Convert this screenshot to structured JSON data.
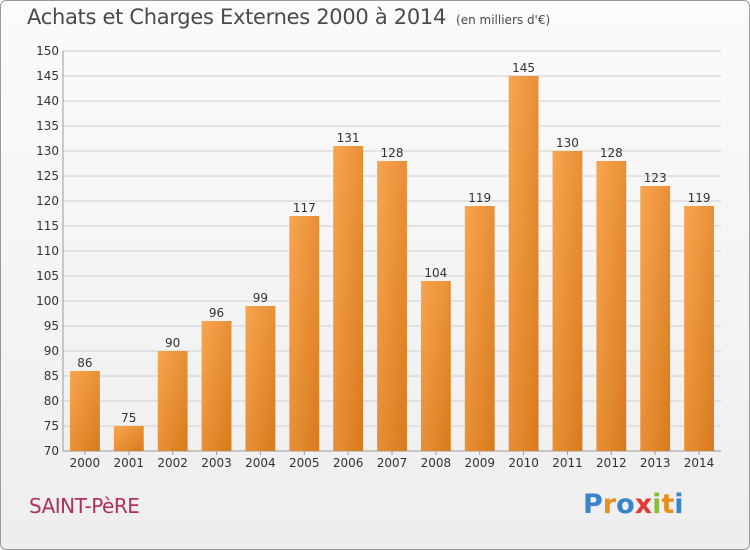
{
  "title": "Achats et Charges Externes 2000 à 2014",
  "unit": "(en milliers d'€)",
  "commune": "SAINT-PèRE",
  "logo": {
    "text": "Proxiti",
    "letters": [
      {
        "ch": "P",
        "color": "#3a84c9"
      },
      {
        "ch": "r",
        "color": "#e8901e"
      },
      {
        "ch": "o",
        "color": "#3a84c9"
      },
      {
        "ch": "x",
        "color": "#e23a3a"
      },
      {
        "ch": "i",
        "color": "#8bbd3a"
      },
      {
        "ch": "t",
        "color": "#e8901e"
      },
      {
        "ch": "i",
        "color": "#3a84c9"
      }
    ]
  },
  "colors": {
    "bar_light": "#f8a550",
    "bar_dark": "#d87a1c",
    "grid": "#cfcfcf",
    "axis_text": "#333333"
  },
  "chart_data": {
    "type": "bar",
    "categories": [
      "2000",
      "2001",
      "2002",
      "2003",
      "2004",
      "2005",
      "2006",
      "2007",
      "2008",
      "2009",
      "2010",
      "2011",
      "2012",
      "2013",
      "2014"
    ],
    "values": [
      86,
      75,
      90,
      96,
      99,
      117,
      131,
      128,
      104,
      119,
      145,
      130,
      128,
      123,
      119
    ],
    "ylim": [
      70,
      150
    ],
    "yticks": [
      70,
      75,
      80,
      85,
      90,
      95,
      100,
      105,
      110,
      115,
      120,
      125,
      130,
      135,
      140,
      145,
      150
    ],
    "grid": true,
    "xlabel": "",
    "ylabel": ""
  }
}
